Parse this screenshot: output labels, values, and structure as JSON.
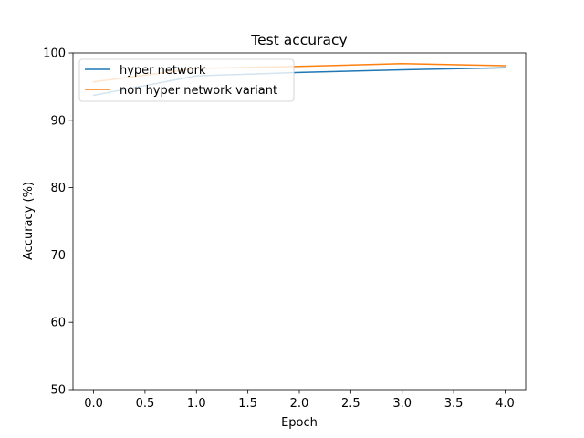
{
  "chart_data": {
    "type": "line",
    "title": "Test accuracy",
    "xlabel": "Epoch",
    "ylabel": "Accuracy (%)",
    "x": [
      0,
      1,
      2,
      3,
      4
    ],
    "xlim": [
      -0.2,
      4.2
    ],
    "ylim": [
      50,
      100
    ],
    "xticks": [
      "0.0",
      "0.5",
      "1.0",
      "1.5",
      "2.0",
      "2.5",
      "3.0",
      "3.5",
      "4.0"
    ],
    "yticks": [
      "50",
      "60",
      "70",
      "80",
      "90",
      "100"
    ],
    "grid": false,
    "legend_position": "top-left",
    "series": [
      {
        "name": "hyper network",
        "color": "#1f77b4",
        "values": [
          93.7,
          96.6,
          97.1,
          97.5,
          97.8
        ]
      },
      {
        "name": "non hyper network variant",
        "color": "#ff7f0e",
        "values": [
          95.7,
          97.7,
          98.0,
          98.4,
          98.1
        ]
      }
    ]
  }
}
